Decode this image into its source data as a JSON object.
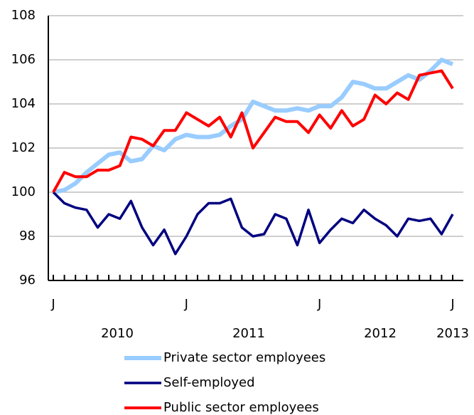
{
  "chart_data": {
    "type": "line",
    "categories": [
      "J",
      null,
      null,
      null,
      null,
      null,
      null,
      null,
      null,
      null,
      null,
      null,
      "J",
      null,
      null,
      null,
      null,
      null,
      null,
      null,
      null,
      null,
      null,
      null,
      "J",
      null,
      null,
      null,
      null,
      null,
      null,
      null,
      null,
      null,
      null,
      null,
      "J"
    ],
    "year_labels": [
      "2010",
      "2011",
      "2012",
      "2013"
    ],
    "series": [
      {
        "name": "Private sector employees",
        "color": "#99ccff",
        "values": [
          100.0,
          100.1,
          100.4,
          100.9,
          101.3,
          101.7,
          101.8,
          101.4,
          101.5,
          102.1,
          101.9,
          102.4,
          102.6,
          102.5,
          102.5,
          102.6,
          103.0,
          103.3,
          104.1,
          103.9,
          103.7,
          103.7,
          103.8,
          103.7,
          103.9,
          103.9,
          104.3,
          105.0,
          104.9,
          104.7,
          104.7,
          105.0,
          105.3,
          105.1,
          105.5,
          106.0,
          105.8
        ]
      },
      {
        "name": "Self-employed",
        "color": "#000080",
        "values": [
          100.0,
          99.5,
          99.3,
          99.2,
          98.4,
          99.0,
          98.8,
          99.6,
          98.4,
          97.6,
          98.3,
          97.2,
          98.0,
          99.0,
          99.5,
          99.5,
          99.7,
          98.4,
          98.0,
          98.1,
          99.0,
          98.8,
          97.6,
          99.2,
          97.7,
          98.3,
          98.8,
          98.6,
          99.2,
          98.8,
          98.5,
          98.0,
          98.8,
          98.7,
          98.8,
          98.1,
          99.0
        ]
      },
      {
        "name": "Public sector employees",
        "color": "#ff0000",
        "values": [
          100.0,
          100.9,
          100.7,
          100.7,
          101.0,
          101.0,
          101.2,
          102.5,
          102.4,
          102.1,
          102.8,
          102.8,
          103.6,
          103.3,
          103.0,
          103.4,
          102.5,
          103.6,
          102.0,
          102.7,
          103.4,
          103.2,
          103.2,
          102.7,
          103.5,
          102.9,
          103.7,
          103.0,
          103.3,
          104.4,
          104.0,
          104.5,
          104.2,
          105.3,
          105.4,
          105.5,
          104.7
        ]
      }
    ],
    "ylim": [
      96,
      108
    ],
    "yticks": [
      96,
      98,
      100,
      102,
      104,
      106,
      108
    ],
    "grid": true
  }
}
